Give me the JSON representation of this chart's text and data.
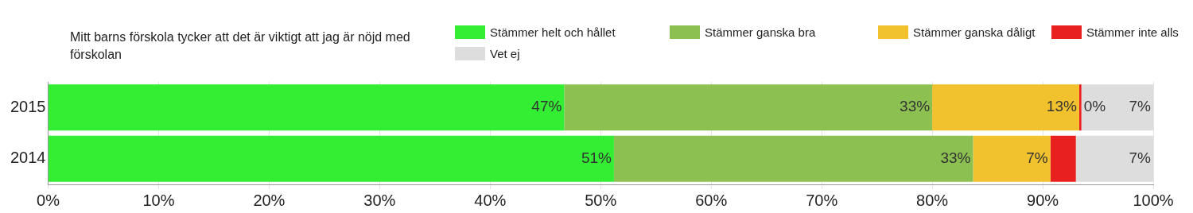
{
  "chart_data": {
    "type": "bar",
    "orientation": "horizontal",
    "stacked": true,
    "title": "Mitt barns förskola tycker att det är viktigt att jag är nöjd med förskolan",
    "categories": [
      "2015",
      "2014"
    ],
    "series": [
      {
        "name": "Stämmer helt och hållet",
        "color": "#33ee33",
        "values": [
          46.7,
          51.2
        ],
        "value_labels": [
          "47%",
          "51%"
        ]
      },
      {
        "name": "Stämmer ganska bra",
        "color": "#8cc152",
        "values": [
          33.3,
          32.5
        ],
        "value_labels": [
          "33%",
          "33%"
        ]
      },
      {
        "name": "Stämmer ganska dåligt",
        "color": "#f2c12e",
        "values": [
          13.3,
          7
        ],
        "value_labels": [
          "13%",
          "7%"
        ]
      },
      {
        "name": "Stämmer inte alls",
        "color": "#e82020",
        "values": [
          0.2,
          2.3
        ],
        "value_labels": [
          "0%",
          null
        ]
      },
      {
        "name": "Vet ej",
        "color": "#dddddd",
        "values": [
          6.5,
          7
        ],
        "value_labels": [
          "7%",
          "7%"
        ]
      }
    ],
    "xlim": [
      0,
      100
    ],
    "xticks": [
      {
        "value": 0,
        "label": "0%"
      },
      {
        "value": 10,
        "label": "10%"
      },
      {
        "value": 20,
        "label": "20%"
      },
      {
        "value": 30,
        "label": "30%"
      },
      {
        "value": 40,
        "label": "40%"
      },
      {
        "value": 50,
        "label": "50%"
      },
      {
        "value": 60,
        "label": "60%"
      },
      {
        "value": 70,
        "label": "70%"
      },
      {
        "value": 80,
        "label": "80%"
      },
      {
        "value": 90,
        "label": "90%"
      },
      {
        "value": 100,
        "label": "100%"
      }
    ],
    "grid": "x",
    "legend": "top right"
  }
}
